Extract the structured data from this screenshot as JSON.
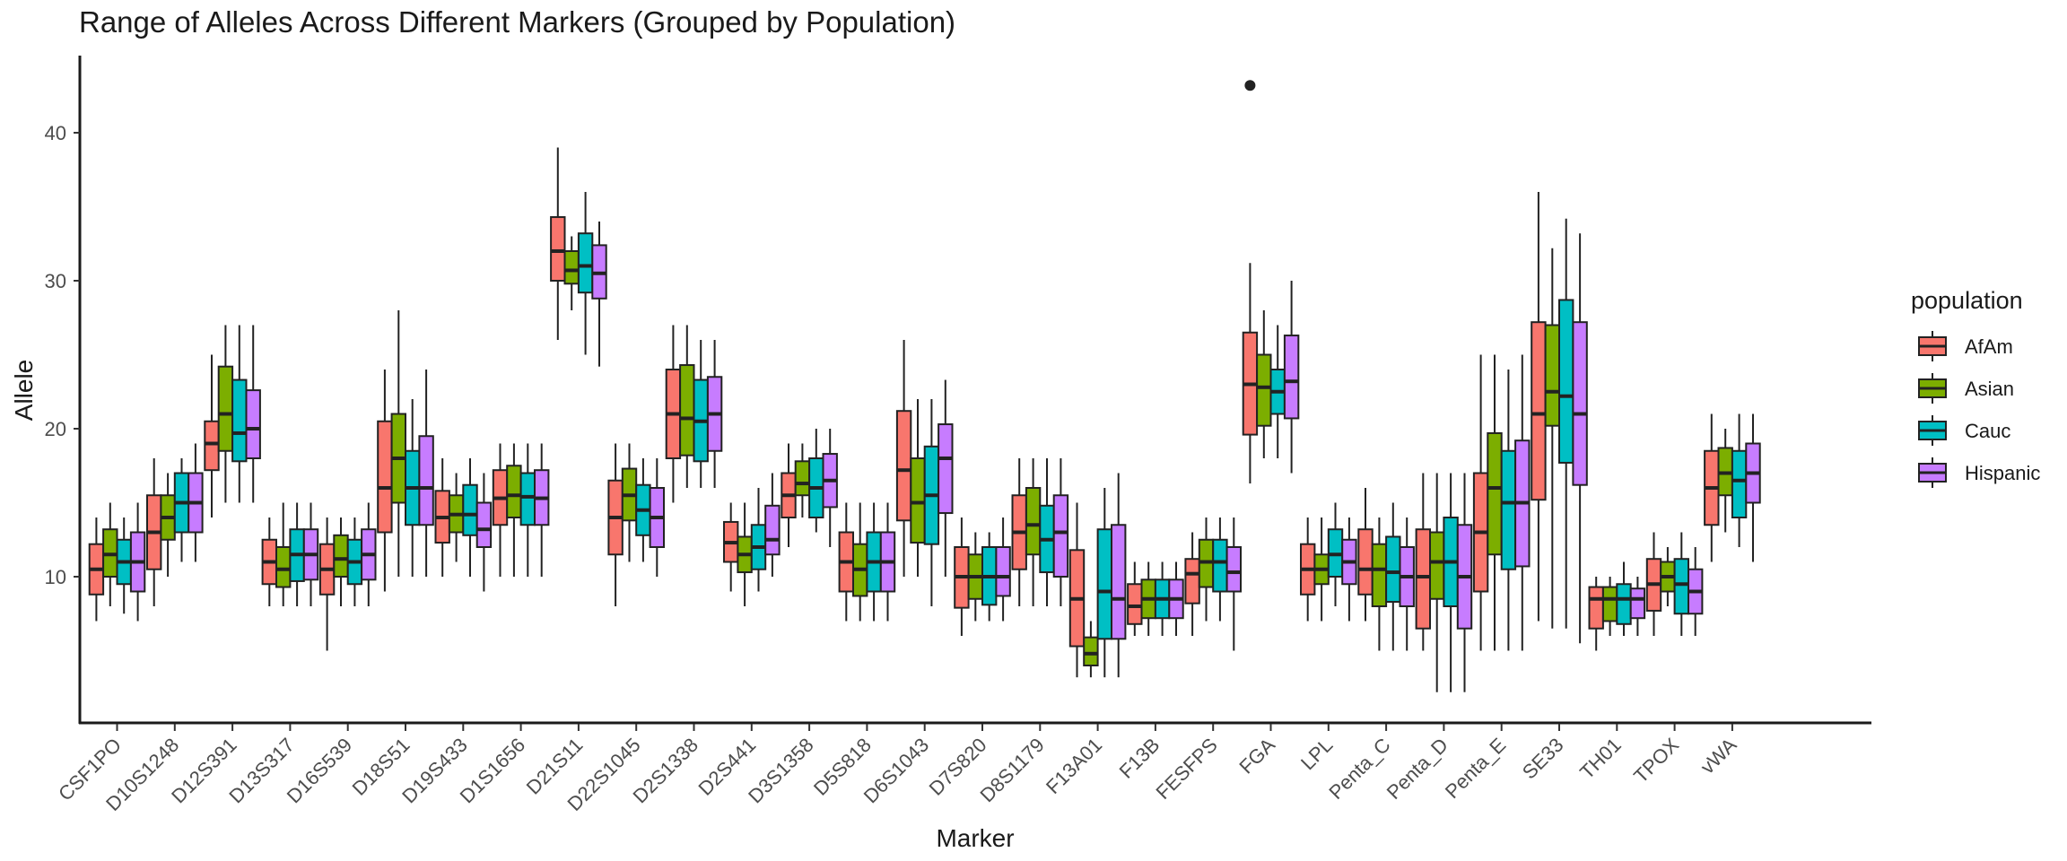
{
  "chart_data": {
    "type": "boxplot",
    "title": "Range of Alleles Across Different Markers (Grouped by Population)",
    "xlabel": "Marker",
    "ylabel": "Allele",
    "ylim": [
      0,
      45.5
    ],
    "yticks": [
      10,
      20,
      30,
      40
    ],
    "grid": false,
    "legend": {
      "title": "population",
      "position": "right"
    },
    "series": [
      {
        "name": "AfAm",
        "color": "#F8766D"
      },
      {
        "name": "Asian",
        "color": "#7CAE00"
      },
      {
        "name": "Cauc",
        "color": "#00BFC4"
      },
      {
        "name": "Hispanic",
        "color": "#C77CFF"
      }
    ],
    "categories": [
      "CSF1PO",
      "D10S1248",
      "D12S391",
      "D13S317",
      "D16S539",
      "D18S51",
      "D19S433",
      "D1S1656",
      "D21S11",
      "D22S1045",
      "D2S1338",
      "D2S441",
      "D3S1358",
      "D5S818",
      "D6S1043",
      "D7S820",
      "D8S1179",
      "F13A01",
      "F13B",
      "FESFPS",
      "FGA",
      "LPL",
      "Penta_C",
      "Penta_D",
      "Penta_E",
      "SE33",
      "TH01",
      "TPOX",
      "vWA"
    ],
    "boxes": [
      [
        [
          7,
          8.8,
          10.5,
          12.2,
          14
        ],
        [
          8,
          10,
          11.5,
          13.2,
          15
        ],
        [
          7.5,
          9.5,
          11,
          12.5,
          14
        ],
        [
          7,
          9,
          11,
          13,
          15
        ]
      ],
      [
        [
          8,
          10.5,
          13,
          15.5,
          18
        ],
        [
          10,
          12.5,
          14,
          15.5,
          17
        ],
        [
          11,
          13,
          15,
          17,
          18
        ],
        [
          11,
          13,
          15,
          17,
          19
        ]
      ],
      [
        [
          14,
          17.2,
          19,
          20.5,
          25
        ],
        [
          15,
          18.5,
          21,
          24.2,
          27
        ],
        [
          15,
          17.8,
          19.7,
          23.3,
          27
        ],
        [
          15,
          18,
          20,
          22.6,
          27
        ]
      ],
      [
        [
          8,
          9.5,
          11,
          12.5,
          14
        ],
        [
          8,
          9.3,
          10.5,
          12,
          15
        ],
        [
          8,
          9.7,
          11.5,
          13.2,
          15
        ],
        [
          8,
          9.8,
          11.5,
          13.2,
          15
        ]
      ],
      [
        [
          5,
          8.8,
          10.5,
          12.2,
          14
        ],
        [
          8,
          10,
          11.2,
          12.8,
          14
        ],
        [
          8,
          9.5,
          11,
          12.5,
          14
        ],
        [
          8,
          9.8,
          11.5,
          13.2,
          15
        ]
      ],
      [
        [
          9,
          13,
          16,
          20.5,
          24
        ],
        [
          10,
          15,
          18,
          21,
          28
        ],
        [
          10,
          13.5,
          16,
          18.5,
          22
        ],
        [
          10,
          13.5,
          16,
          19.5,
          24
        ]
      ],
      [
        [
          10,
          12.3,
          14,
          15.8,
          18
        ],
        [
          11,
          13,
          14.2,
          15.5,
          17
        ],
        [
          10,
          12.8,
          14.2,
          16.2,
          18
        ],
        [
          9,
          12,
          13.2,
          15,
          17
        ]
      ],
      [
        [
          10,
          13.5,
          15.3,
          17.2,
          19
        ],
        [
          10,
          14,
          15.5,
          17.5,
          19
        ],
        [
          10,
          13.5,
          15.4,
          17,
          19
        ],
        [
          10,
          13.5,
          15.3,
          17.2,
          19
        ]
      ],
      [
        [
          26,
          30,
          32,
          34.3,
          39
        ],
        [
          28,
          29.8,
          30.7,
          32,
          33
        ],
        [
          25,
          29.2,
          31,
          33.2,
          36
        ],
        [
          24.2,
          28.8,
          30.5,
          32.4,
          34
        ]
      ],
      [
        [
          8,
          11.5,
          14,
          16.5,
          19
        ],
        [
          11,
          13.8,
          15.5,
          17.3,
          19
        ],
        [
          11,
          12.8,
          14.5,
          16.2,
          18
        ],
        [
          10,
          12,
          14,
          16,
          18
        ]
      ],
      [
        [
          15,
          18,
          21,
          24,
          27
        ],
        [
          16,
          18.2,
          20.7,
          24.3,
          27
        ],
        [
          16,
          17.8,
          20.5,
          23.3,
          26
        ],
        [
          16,
          18.5,
          21,
          23.5,
          26
        ]
      ],
      [
        [
          9,
          11,
          12.3,
          13.7,
          15
        ],
        [
          8,
          10.3,
          11.5,
          12.7,
          15
        ],
        [
          9,
          10.5,
          12,
          13.5,
          16
        ],
        [
          10,
          11.5,
          12.5,
          14.8,
          17
        ]
      ],
      [
        [
          12,
          14,
          15.5,
          17,
          19
        ],
        [
          14,
          15.5,
          16.3,
          17.8,
          19
        ],
        [
          13,
          14,
          16,
          18,
          20
        ],
        [
          12,
          14.7,
          16.5,
          18.3,
          20
        ]
      ],
      [
        [
          7,
          9,
          11,
          13,
          15
        ],
        [
          7,
          8.7,
          10.5,
          12.2,
          15
        ],
        [
          7,
          9,
          11,
          13,
          15
        ],
        [
          7,
          9,
          11,
          13,
          15
        ]
      ],
      [
        [
          10,
          13.8,
          17.2,
          21.2,
          26
        ],
        [
          10,
          12.3,
          15,
          18,
          22
        ],
        [
          8,
          12.2,
          15.5,
          18.8,
          22
        ],
        [
          10,
          14.3,
          18,
          20.3,
          23.3
        ]
      ],
      [
        [
          6,
          7.9,
          10,
          12,
          14
        ],
        [
          7,
          8.5,
          10,
          11.5,
          13
        ],
        [
          7,
          8.1,
          10,
          12,
          13
        ],
        [
          7,
          8.7,
          10,
          12,
          14
        ]
      ],
      [
        [
          8,
          10.5,
          13,
          15.5,
          18
        ],
        [
          8,
          11.5,
          13.5,
          16,
          18
        ],
        [
          8,
          10.3,
          12.5,
          14.8,
          18
        ],
        [
          8,
          10,
          13,
          15.5,
          18
        ]
      ],
      [
        [
          3.2,
          5.3,
          8.5,
          11.8,
          15
        ],
        [
          3.2,
          4,
          4.8,
          5.9,
          7
        ],
        [
          3.2,
          5.8,
          9,
          13.2,
          16
        ],
        [
          3.2,
          5.8,
          8.5,
          13.5,
          17
        ]
      ],
      [
        [
          6,
          6.8,
          8,
          9.5,
          11
        ],
        [
          6,
          7.2,
          8.5,
          9.8,
          11
        ],
        [
          6,
          7.2,
          8.5,
          9.8,
          11
        ],
        [
          6,
          7.2,
          8.5,
          9.8,
          11
        ]
      ],
      [
        [
          6,
          8.2,
          10.2,
          11.2,
          13
        ],
        [
          7,
          9.3,
          11,
          12.5,
          14
        ],
        [
          7,
          9,
          11,
          12.5,
          14
        ],
        [
          5,
          9,
          10.3,
          12,
          14
        ]
      ],
      [
        [
          16.3,
          19.6,
          23,
          26.5,
          31.2
        ],
        [
          18,
          20.2,
          22.8,
          25,
          28
        ],
        [
          18,
          21,
          22.5,
          24,
          27
        ],
        [
          17,
          20.7,
          23.2,
          26.3,
          30
        ]
      ],
      [
        [
          7,
          8.8,
          10.5,
          12.2,
          14
        ],
        [
          7,
          9.5,
          10.5,
          11.5,
          14
        ],
        [
          8,
          10,
          11.5,
          13.2,
          15
        ],
        [
          7,
          9.5,
          11,
          12.5,
          14
        ]
      ],
      [
        [
          7,
          8.8,
          10.5,
          13.2,
          16
        ],
        [
          5,
          8,
          10.5,
          12.2,
          14
        ],
        [
          5,
          8.3,
          10.3,
          12.7,
          15
        ],
        [
          5,
          8,
          10,
          12,
          14
        ]
      ],
      [
        [
          5,
          6.5,
          10,
          13.2,
          17
        ],
        [
          2.2,
          8.5,
          11,
          13,
          17
        ],
        [
          2.2,
          8,
          11,
          14,
          17
        ],
        [
          2.2,
          6.5,
          10,
          13.5,
          17
        ]
      ],
      [
        [
          5,
          9,
          13,
          17,
          25
        ],
        [
          5,
          11.5,
          16,
          19.7,
          25
        ],
        [
          5,
          10.5,
          15,
          18.5,
          24
        ],
        [
          5,
          10.7,
          15,
          19.2,
          25
        ]
      ],
      [
        [
          7,
          15.2,
          21,
          27.2,
          36
        ],
        [
          6.5,
          20.2,
          22.5,
          27,
          32.2
        ],
        [
          6.5,
          17.7,
          22.2,
          28.7,
          34.2
        ],
        [
          5.5,
          16.2,
          21,
          27.2,
          33.2
        ]
      ],
      [
        [
          5,
          6.5,
          8.5,
          9.3,
          10
        ],
        [
          6,
          7,
          8.5,
          9.3,
          10
        ],
        [
          6,
          6.8,
          8.5,
          9.5,
          11
        ],
        [
          6,
          7.2,
          8.5,
          9.2,
          10
        ]
      ],
      [
        [
          6,
          7.7,
          9.5,
          11.2,
          13
        ],
        [
          8,
          9,
          10,
          11,
          12
        ],
        [
          6,
          7.5,
          9.5,
          11.2,
          13
        ],
        [
          6,
          7.5,
          9,
          10.5,
          12
        ]
      ],
      [
        [
          11,
          13.5,
          16,
          18.5,
          21
        ],
        [
          13,
          15.5,
          17,
          18.7,
          20
        ],
        [
          12,
          14,
          16.5,
          18.5,
          21
        ],
        [
          11,
          15,
          17,
          19,
          21
        ]
      ]
    ],
    "outliers": [
      {
        "category": "FGA",
        "series": "AfAm",
        "value": 43.2
      }
    ]
  }
}
